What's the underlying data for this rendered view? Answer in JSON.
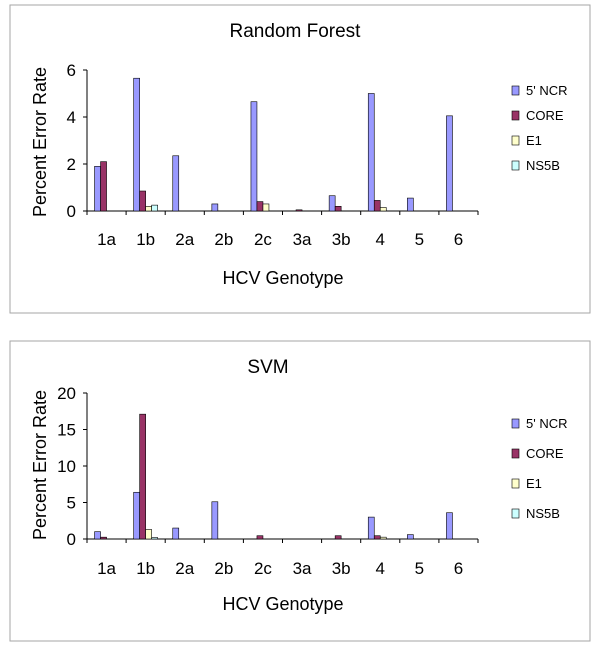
{
  "chart_data": [
    {
      "type": "bar",
      "title": "Random Forest",
      "xlabel": "HCV Genotype",
      "ylabel": "Percent Error Rate",
      "categories": [
        "1a",
        "1b",
        "2a",
        "2b",
        "2c",
        "3a",
        "3b",
        "4",
        "5",
        "6"
      ],
      "ylim": [
        0,
        6
      ],
      "yticks": [
        0,
        2,
        4,
        6
      ],
      "grid": false,
      "legend": "right",
      "series": [
        {
          "name": "5' NCR",
          "color": "#9999ff",
          "values": [
            1.9,
            5.65,
            2.35,
            0.3,
            4.65,
            0,
            0.65,
            5.0,
            0.55,
            4.05
          ]
        },
        {
          "name": "CORE",
          "color": "#993366",
          "values": [
            2.1,
            0.85,
            0,
            0,
            0.4,
            0.05,
            0.2,
            0.45,
            0,
            0
          ]
        },
        {
          "name": "E1",
          "color": "#ffffcc",
          "values": [
            0,
            0.2,
            0,
            0,
            0.3,
            0,
            0,
            0.15,
            0,
            0
          ]
        },
        {
          "name": "NS5B",
          "color": "#ccffff",
          "values": [
            0,
            0.25,
            0,
            0,
            0,
            0,
            0,
            0,
            0,
            0
          ]
        }
      ]
    },
    {
      "type": "bar",
      "title": "SVM",
      "xlabel": "HCV Genotype",
      "ylabel": "Percent Error Rate",
      "categories": [
        "1a",
        "1b",
        "2a",
        "2b",
        "2c",
        "3a",
        "3b",
        "4",
        "5",
        "6"
      ],
      "ylim": [
        0,
        20
      ],
      "yticks": [
        0,
        5,
        10,
        15,
        20
      ],
      "grid": false,
      "legend": "right",
      "series": [
        {
          "name": "5' NCR",
          "color": "#9999ff",
          "values": [
            1.0,
            6.4,
            1.5,
            5.1,
            0,
            0,
            0,
            3.0,
            0.6,
            3.6
          ]
        },
        {
          "name": "CORE",
          "color": "#993366",
          "values": [
            0.25,
            17.1,
            0,
            0,
            0.45,
            0,
            0.45,
            0.45,
            0,
            0
          ]
        },
        {
          "name": "E1",
          "color": "#ffffcc",
          "values": [
            0,
            1.3,
            0,
            0,
            0,
            0,
            0,
            0.25,
            0,
            0
          ]
        },
        {
          "name": "NS5B",
          "color": "#ccffff",
          "values": [
            0,
            0.2,
            0,
            0,
            0,
            0,
            0,
            0,
            0,
            0
          ]
        }
      ]
    }
  ]
}
